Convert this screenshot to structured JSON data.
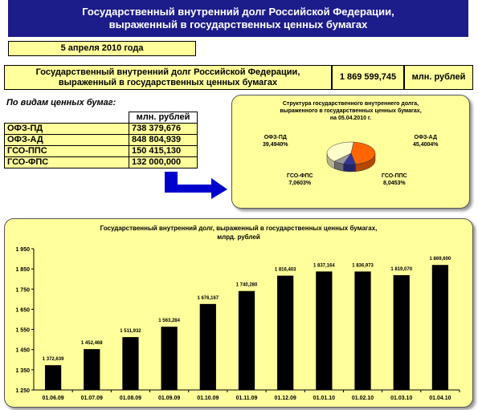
{
  "header": {
    "line1": "Государственный внутренний долг Российской Федерации,",
    "line2": "выраженный в государственных ценных бумагах"
  },
  "date": "5 апреля  2010 года",
  "summary": {
    "label_line1": "Государственный внутренний долг Российской Федерации,",
    "label_line2": "выраженный в государственных ценных бумагах",
    "value": "1 869 599,745",
    "unit": "млн. рублей"
  },
  "types_table": {
    "title": "По видам ценных бумаг:",
    "unit_header": "млн. рублей",
    "rows": [
      {
        "name": "ОФЗ-ПД",
        "value": "738 379,676"
      },
      {
        "name": "ОФЗ-АД",
        "value": "848 804,939"
      },
      {
        "name": "ГСО-ППС",
        "value": "150 415,130"
      },
      {
        "name": "ГСО-ФПС",
        "value": "132 000,000"
      }
    ]
  },
  "pie": {
    "title_lines": [
      "Структура государственного внутреннего долга,",
      "выраженного в государственных ценных бумагах,",
      "на 05.04.2010 г."
    ],
    "labels": [
      {
        "name": "ОФЗ-ПД",
        "pct": "39,4940%"
      },
      {
        "name": "ОФЗ-АД",
        "pct": "45,4004%"
      },
      {
        "name": "ГСО-ППС",
        "pct": "8,0453%"
      },
      {
        "name": "ГСО-ФПС",
        "pct": "7,0603%"
      }
    ]
  },
  "colors": {
    "header_bg": "#1c1c8a",
    "panel_bg": "#ffff9c",
    "bar": "#000000",
    "pie_ofz_pd": "#ffffcc",
    "pie_ofz_ad": "#ff6600",
    "pie_gso_pps": "#333399",
    "pie_gso_fps": "#999999",
    "arrow": "#0000cc"
  },
  "chart_data": [
    {
      "type": "bar",
      "title": "Государственный внутренний долг, выраженный в государственных ценных бумагах,",
      "subtitle": "млрд. рублей",
      "categories": [
        "01.06.09",
        "01.07.09",
        "01.08.09",
        "01.09.09",
        "01.10.09",
        "01.11.09",
        "01.12.09",
        "01.01.10",
        "01.02.10",
        "01.03.10",
        "01.04.10"
      ],
      "values": [
        1372.639,
        1452.468,
        1511.932,
        1563.284,
        1676.167,
        1740.28,
        1816.403,
        1837.164,
        1836.973,
        1819.07,
        1869.6
      ],
      "value_labels": [
        "1 372,639",
        "1 452,468",
        "1 511,932",
        "1 563,284",
        "1 676,167",
        "1 740,280",
        "1 816,403",
        "1 837,164",
        "1 836,973",
        "1 819,070",
        "1 869,600"
      ],
      "ylim": [
        1250,
        1950
      ],
      "yticks": [
        1250,
        1350,
        1450,
        1550,
        1650,
        1750,
        1850,
        1950
      ],
      "ytick_labels": [
        "1 250",
        "1 350",
        "1 450",
        "1 550",
        "1 650",
        "1 750",
        "1 850",
        "1 950"
      ],
      "grid": false
    },
    {
      "type": "pie",
      "categories": [
        "ОФЗ-ПД",
        "ОФЗ-АД",
        "ГСО-ППС",
        "ГСО-ФПС"
      ],
      "values": [
        39.494,
        45.4004,
        8.0453,
        7.0603
      ]
    }
  ]
}
